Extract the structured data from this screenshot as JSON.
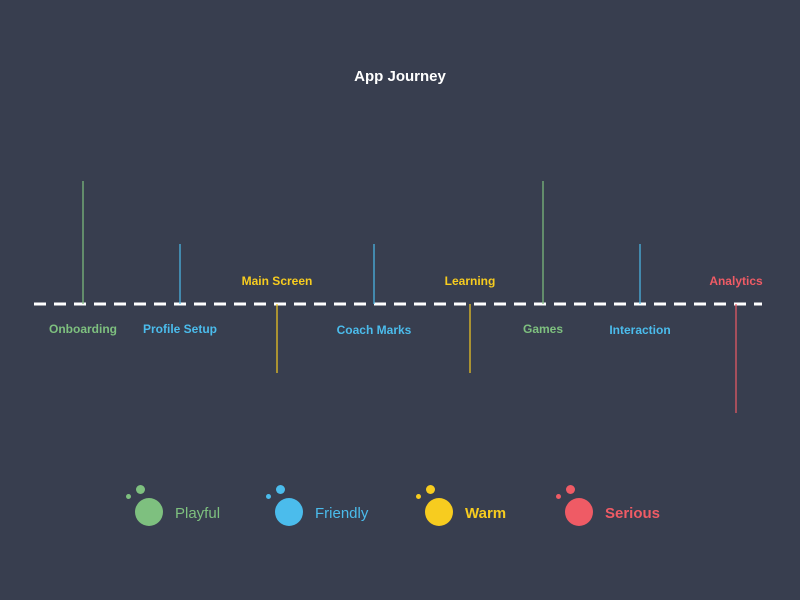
{
  "title": "App Journey",
  "colors": {
    "background": "#383e4f",
    "axis": "#ffffff",
    "playful": "#7ec07f",
    "friendly": "#4bbcec",
    "warm": "#f7cc1f",
    "serious": "#ef5b65"
  },
  "stages": [
    {
      "label": "Onboarding",
      "tone": "playful",
      "side": "below"
    },
    {
      "label": "Profile Setup",
      "tone": "friendly",
      "side": "below"
    },
    {
      "label": "Main Screen",
      "tone": "warm",
      "side": "above"
    },
    {
      "label": "Coach Marks",
      "tone": "friendly",
      "side": "below"
    },
    {
      "label": "Learning",
      "tone": "warm",
      "side": "above"
    },
    {
      "label": "Games",
      "tone": "playful",
      "side": "below"
    },
    {
      "label": "Interaction",
      "tone": "friendly",
      "side": "below"
    },
    {
      "label": "Analytics",
      "tone": "serious",
      "side": "above"
    }
  ],
  "legend": [
    {
      "label": "Playful",
      "tone": "playful"
    },
    {
      "label": "Friendly",
      "tone": "friendly"
    },
    {
      "label": "Warm",
      "tone": "warm"
    },
    {
      "label": "Serious",
      "tone": "serious"
    }
  ]
}
